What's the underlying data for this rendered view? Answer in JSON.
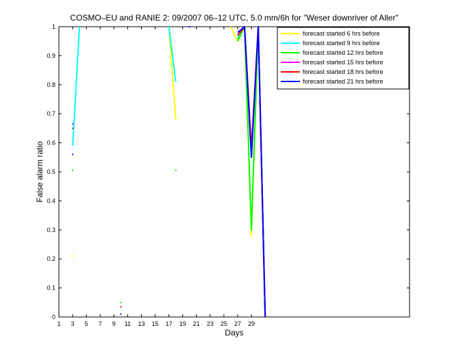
{
  "chart_data": {
    "type": "line",
    "title": "COSMO–EU and RANIE 2: 09/2007 06–12 UTC, 5.0 mm/6h for \"Weser downriver of Aller\"",
    "xlabel": "Days",
    "ylabel": "False alarm ratio",
    "xlim": [
      1,
      52
    ],
    "ylim": [
      0,
      1
    ],
    "xticks": [
      1,
      3,
      5,
      7,
      9,
      11,
      13,
      15,
      17,
      19,
      21,
      23,
      25,
      27,
      29
    ],
    "yticks": [
      0,
      0.1,
      0.2,
      0.3,
      0.4,
      0.5,
      0.6,
      0.7,
      0.8,
      0.9,
      1
    ],
    "xtick_labels": [
      "1",
      "3",
      "5",
      "7",
      "9",
      "11",
      "13",
      "15",
      "17",
      "19",
      "21",
      "23",
      "25",
      "27",
      "29"
    ],
    "ytick_labels": [
      "0",
      "0.1",
      "0.2",
      "0.3",
      "0.4",
      "0.5",
      "0.6",
      "0.7",
      "0.8",
      "0.9",
      "1"
    ],
    "legend_position": "top-right",
    "series": [
      {
        "name": "forecast started 6 hrs before",
        "color": "#ffff00",
        "segments": [
          [
            [
              3,
              0.21
            ]
          ],
          [
            [
              17,
              1.0
            ],
            [
              18,
              0.68
            ]
          ],
          [
            [
              26,
              1.0
            ],
            [
              27,
              0.95
            ],
            [
              28,
              1.0
            ],
            [
              29,
              0.28
            ],
            [
              30,
              1.0
            ],
            [
              31,
              0.0
            ]
          ]
        ]
      },
      {
        "name": "forecast started 9 hrs before",
        "color": "#00ffff",
        "segments": [
          [
            [
              3,
              0.59
            ],
            [
              4,
              1.0
            ]
          ],
          [
            [
              17,
              1.0
            ],
            [
              18,
              0.81
            ]
          ],
          [
            [
              27,
              0.96
            ],
            [
              28,
              1.0
            ],
            [
              29,
              0.56
            ],
            [
              30,
              1.0
            ],
            [
              31,
              0.0
            ]
          ]
        ]
      },
      {
        "name": "forecast started 12 hrs before",
        "color": "#00ff00",
        "segments": [
          [
            [
              3,
              0.505
            ]
          ],
          [
            [
              10,
              0.05
            ]
          ],
          [
            [
              18,
              0.505
            ]
          ],
          [
            [
              27,
              0.95
            ],
            [
              28,
              1.0
            ],
            [
              29,
              0.3
            ],
            [
              30,
              1.0
            ],
            [
              31,
              0.0
            ]
          ]
        ]
      },
      {
        "name": "forecast started 15 hrs before",
        "color": "#ff00ff",
        "segments": [
          [
            [
              3,
              0.665
            ]
          ],
          [
            [
              27,
              0.97
            ],
            [
              28,
              1.0
            ],
            [
              29,
              0.58
            ],
            [
              30,
              1.0
            ],
            [
              31,
              0.0
            ]
          ]
        ]
      },
      {
        "name": "forecast started 18 hrs before",
        "color": "#ff0000",
        "segments": [
          [
            [
              3,
              0.65
            ]
          ],
          [
            [
              10,
              0.035
            ]
          ],
          [
            [
              27,
              0.97
            ],
            [
              28,
              1.0
            ],
            [
              29,
              0.57
            ],
            [
              30,
              1.0
            ],
            [
              31,
              0.0
            ]
          ]
        ]
      },
      {
        "name": "forecast started 21 hrs before",
        "color": "#0000ff",
        "segments": [
          [
            [
              3,
              0.56
            ]
          ],
          [
            [
              10,
              0.01
            ]
          ],
          [
            [
              20,
              1.0
            ]
          ],
          [
            [
              27,
              0.98
            ],
            [
              28,
              1.0
            ],
            [
              29,
              0.55
            ],
            [
              30,
              1.0
            ],
            [
              31,
              0.0
            ]
          ]
        ]
      }
    ]
  }
}
